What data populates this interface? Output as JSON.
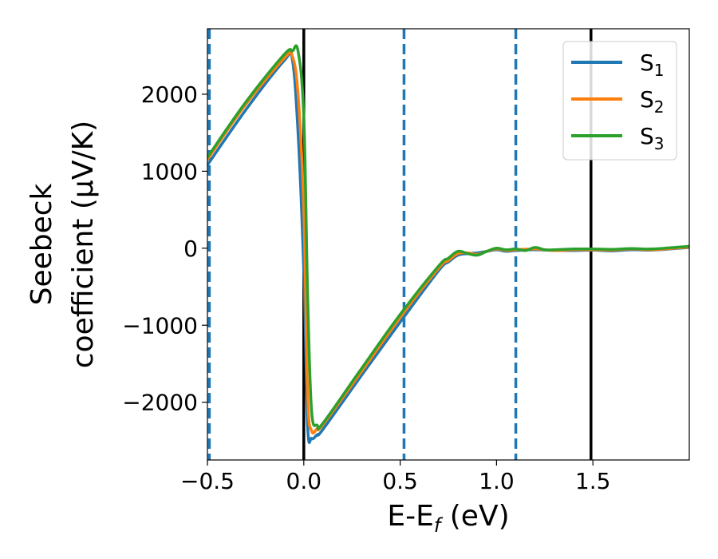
{
  "chart_data": {
    "type": "line",
    "xlabel": "E-E",
    "xlabel_sub": "f",
    "xlabel_unit": " (eV)",
    "ylabel_line1": "Seebeck",
    "ylabel_line2": "coefficient  (μV/K)",
    "xlim": [
      -0.5,
      2.0
    ],
    "ylim": [
      -2750,
      2850
    ],
    "xticks": [
      {
        "value": -0.5,
        "label": "−0.5"
      },
      {
        "value": 0.0,
        "label": "0.0"
      },
      {
        "value": 0.5,
        "label": "0.5"
      },
      {
        "value": 1.0,
        "label": "1.0"
      },
      {
        "value": 1.5,
        "label": "1.5"
      }
    ],
    "yticks": [
      {
        "value": 2000,
        "label": "2000"
      },
      {
        "value": 1000,
        "label": "1000"
      },
      {
        "value": 0,
        "label": "0"
      },
      {
        "value": -1000,
        "label": "−1000"
      },
      {
        "value": -2000,
        "label": "−2000"
      }
    ],
    "grid": false,
    "legend_position": "top-right",
    "vlines": [
      {
        "x": -0.49,
        "style": "dashed",
        "color": "#1f77b4"
      },
      {
        "x": 0.0,
        "style": "solid",
        "color": "#000000"
      },
      {
        "x": 0.52,
        "style": "dashed",
        "color": "#1f77b4"
      },
      {
        "x": 1.1,
        "style": "dashed",
        "color": "#1f77b4"
      },
      {
        "x": 1.49,
        "style": "solid",
        "color": "#000000"
      }
    ],
    "series": [
      {
        "name": "S",
        "subscript": "1",
        "color": "#1f77b4",
        "x": [
          -0.5,
          -0.3,
          -0.1,
          -0.06,
          -0.03,
          0.0,
          0.02,
          0.04,
          0.07,
          0.1,
          0.3,
          0.5,
          0.7,
          0.75,
          0.8,
          0.85,
          0.9,
          0.95,
          1.0,
          1.05,
          1.1,
          1.2,
          1.3,
          1.4,
          1.5,
          1.6,
          1.7,
          1.8,
          1.9,
          2.0
        ],
        "y": [
          1080,
          1800,
          2440,
          2460,
          1500,
          -300,
          -2300,
          -2470,
          -2420,
          -2350,
          -1650,
          -960,
          -290,
          -180,
          -90,
          -70,
          -60,
          -40,
          -20,
          -40,
          -30,
          -20,
          -30,
          -30,
          -25,
          -35,
          -20,
          -25,
          -10,
          10
        ]
      },
      {
        "name": "S",
        "subscript": "2",
        "color": "#ff7f0e",
        "x": [
          -0.5,
          -0.3,
          -0.1,
          -0.06,
          -0.03,
          0.0,
          0.02,
          0.04,
          0.07,
          0.1,
          0.3,
          0.5,
          0.7,
          0.75,
          0.8,
          0.85,
          0.9,
          0.95,
          1.0,
          1.05,
          1.1,
          1.2,
          1.3,
          1.4,
          1.5,
          1.6,
          1.7,
          1.8,
          1.9,
          2.0
        ],
        "y": [
          1150,
          1870,
          2470,
          2500,
          2000,
          500,
          -1900,
          -2370,
          -2340,
          -2290,
          -1600,
          -900,
          -260,
          -160,
          -70,
          -60,
          -80,
          -40,
          -10,
          -30,
          -20,
          -10,
          -30,
          -20,
          -20,
          -25,
          -10,
          -20,
          -5,
          15
        ]
      },
      {
        "name": "S",
        "subscript": "3",
        "color": "#2ca02c",
        "x": [
          -0.5,
          -0.3,
          -0.1,
          -0.06,
          -0.03,
          0.0,
          0.02,
          0.04,
          0.07,
          0.1,
          0.3,
          0.5,
          0.7,
          0.75,
          0.8,
          0.85,
          0.9,
          0.95,
          1.0,
          1.05,
          1.1,
          1.15,
          1.2,
          1.25,
          1.3,
          1.4,
          1.5,
          1.6,
          1.7,
          1.8,
          1.9,
          2.0
        ],
        "y": [
          1180,
          1900,
          2520,
          2560,
          2560,
          1700,
          -600,
          -2100,
          -2300,
          -2270,
          -1560,
          -860,
          -230,
          -130,
          -40,
          -70,
          -90,
          -40,
          0,
          -20,
          -10,
          -30,
          10,
          -20,
          -20,
          -10,
          -10,
          -15,
          -5,
          -10,
          5,
          25
        ]
      }
    ]
  }
}
